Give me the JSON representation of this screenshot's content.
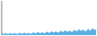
{
  "chart_data": {
    "type": "area",
    "values": [
      42,
      28,
      25,
      38,
      48,
      30,
      22,
      35,
      50,
      32,
      28,
      45,
      40,
      28,
      25,
      42,
      55,
      38,
      28,
      45,
      58,
      40,
      32,
      50,
      48,
      35,
      30,
      52,
      65,
      48,
      38,
      58,
      70,
      52,
      42,
      62,
      62,
      48,
      42,
      65,
      78,
      60,
      50,
      72,
      85,
      68,
      55,
      78,
      78,
      62,
      55,
      82,
      98,
      80,
      68,
      92,
      108,
      88,
      72,
      100,
      98,
      78,
      70,
      102,
      122,
      100,
      85,
      115,
      135,
      108,
      92,
      125,
      118,
      95,
      85,
      118,
      142,
      118,
      100,
      135,
      158,
      130,
      110,
      148
    ],
    "color": "#5baee0",
    "ylim": [
      0,
      800
    ],
    "tick_labels": false
  }
}
